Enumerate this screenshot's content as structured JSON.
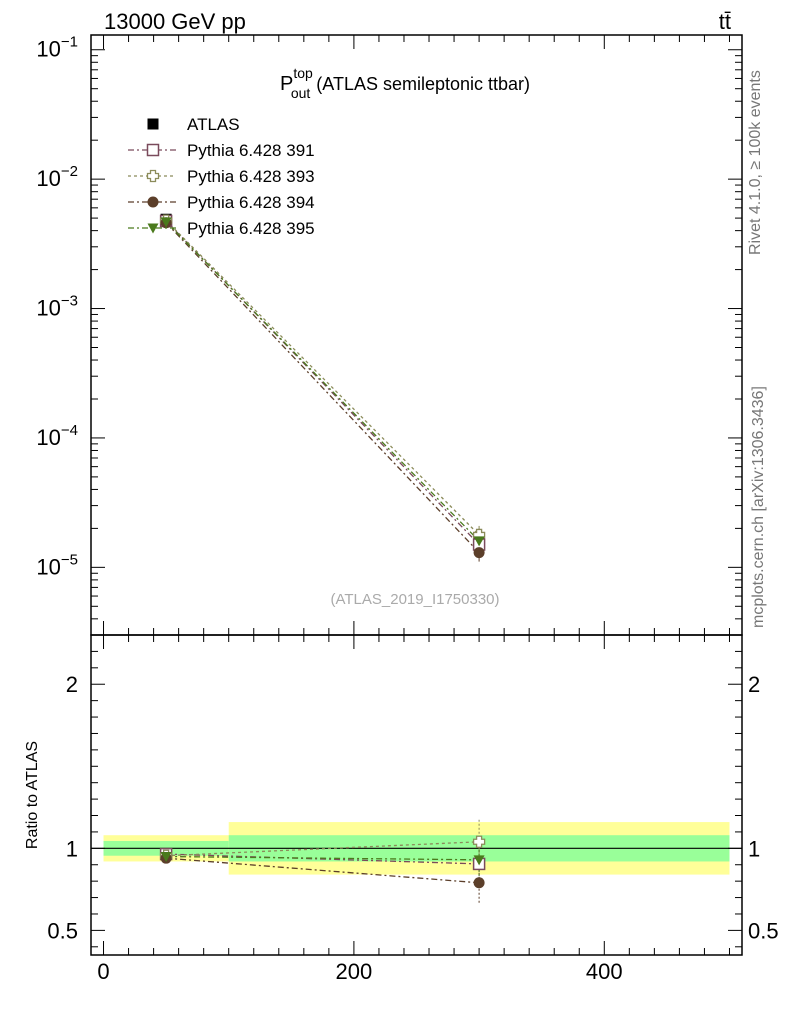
{
  "header": {
    "left": "13000 GeV pp",
    "right": "tt̄"
  },
  "side_labels": {
    "top": "Rivet 4.1.0, ≥ 100k events",
    "bottom": "mcplots.cern.ch [arXiv:1306.3436]"
  },
  "chart_data": {
    "type": "line",
    "title": {
      "main": "P",
      "sup": "top",
      "sub": "out",
      "rest": "(ATLAS semileptonic ttbar)"
    },
    "analysis_tag": "(ATLAS_2019_I1750330)",
    "x_ticks": [
      "0",
      "200",
      "400"
    ],
    "xlim": [
      -10,
      510
    ],
    "main_panel": {
      "yscale": "log",
      "ylim": [
        3e-06,
        0.13
      ],
      "y_ticks": [
        {
          "base": "10",
          "exp": "−1",
          "value": 0.1
        },
        {
          "base": "10",
          "exp": "−2",
          "value": 0.01
        },
        {
          "base": "10",
          "exp": "−3",
          "value": 0.001
        },
        {
          "base": "10",
          "exp": "−4",
          "value": 0.0001
        },
        {
          "base": "10",
          "exp": "−5",
          "value": 1e-05
        }
      ]
    },
    "ratio_panel": {
      "ylabel": "Ratio to ATLAS",
      "ylim": [
        0.35,
        2.3
      ],
      "y_ticks": [
        {
          "label": "0.5",
          "value": 0.5
        },
        {
          "label": "1",
          "value": 1
        },
        {
          "label": "2",
          "value": 2
        }
      ],
      "bands": [
        {
          "x0": 0,
          "x1": 100,
          "inner": [
            0.955,
            1.045
          ],
          "outer": [
            0.92,
            1.08
          ]
        },
        {
          "x0": 100,
          "x1": 500,
          "inner": [
            0.92,
            1.08
          ],
          "outer": [
            0.84,
            1.16
          ]
        }
      ]
    },
    "x": [
      50,
      300
    ],
    "series": [
      {
        "name": "ATLAS",
        "values": [
          0.0049,
          1.7e-05
        ],
        "ratio": [
          1.0,
          1.0
        ],
        "color": "#000000",
        "marker": "square-filled",
        "dash": "none"
      },
      {
        "name": "Pythia 6.428 391",
        "values": [
          0.00475,
          1.5e-05
        ],
        "ratio": [
          0.965,
          0.905
        ],
        "color": "#7a4a5c",
        "marker": "square-open",
        "dash": "6 3 2 3"
      },
      {
        "name": "Pythia 6.428 393",
        "values": [
          0.00478,
          1.78e-05
        ],
        "ratio": [
          0.955,
          1.04
        ],
        "color": "#8b8b5a",
        "marker": "cross-open",
        "dash": "3 3"
      },
      {
        "name": "Pythia 6.428 394",
        "values": [
          0.0046,
          1.3e-05
        ],
        "ratio": [
          0.94,
          0.79
        ],
        "color": "#5c3f2a",
        "marker": "circle-filled",
        "dash": "6 3 2 3"
      },
      {
        "name": "Pythia 6.428 395",
        "values": [
          0.00468,
          1.6e-05
        ],
        "ratio": [
          0.95,
          0.93
        ],
        "color": "#4a7a1c",
        "marker": "triangle-filled",
        "dash": "6 3 2 3"
      }
    ]
  }
}
